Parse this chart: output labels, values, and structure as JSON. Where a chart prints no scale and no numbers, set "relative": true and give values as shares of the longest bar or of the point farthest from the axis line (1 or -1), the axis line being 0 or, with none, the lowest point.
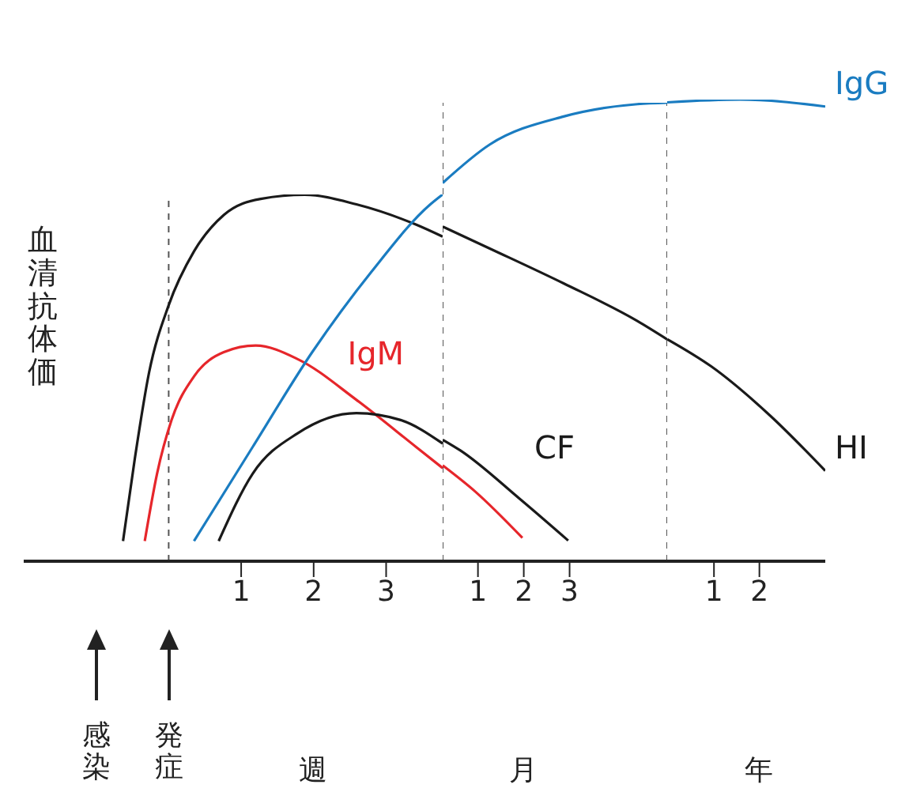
{
  "chart_data": [
    {
      "type": "line",
      "relative": true,
      "ylabel": "血清抗体価",
      "xlim": [
        -2,
        3.78
      ],
      "xticks": [
        1,
        2,
        3
      ],
      "series": [
        {
          "color": "#1a1a1a",
          "x": [
            -0.63,
            -0.47,
            -0.27,
            0,
            0.35,
            0.76,
            1.27,
            1.88,
            2.59,
            3.41,
            3.78
          ],
          "values": [
            0.055,
            0.276,
            0.515,
            0.698,
            0.845,
            0.944,
            0.988,
            0.999,
            0.973,
            0.918,
            0.885
          ]
        },
        {
          "name": "IgM",
          "color": "#e6262b",
          "x": [
            -0.33,
            -0.16,
            0.04,
            0.35,
            0.76,
            1.2,
            1.78,
            2.59,
            3.41,
            3.78
          ],
          "values": [
            0.055,
            0.239,
            0.385,
            0.504,
            0.57,
            0.588,
            0.551,
            0.44,
            0.312,
            0.254
          ]
        },
        {
          "color": "#1a1a1a",
          "x": [
            0.69,
            1.16,
            1.78,
            2.59,
            3.2,
            3.78
          ],
          "values": [
            0.055,
            0.239,
            0.349,
            0.404,
            0.385,
            0.321
          ]
        },
        {
          "color": "#1a7cc1",
          "x": [
            0.35,
            1.16,
            1.98,
            2.8,
            3.61,
            3.78
          ],
          "values": [
            0.055,
            0.312,
            0.57,
            0.79,
            0.973,
            1
          ]
        }
      ],
      "ref_lines": [
        {
          "axis": "x",
          "value": 0,
          "color": "#555555",
          "line_style": "dashed"
        }
      ],
      "annotations": [
        "感染",
        "発症",
        "週"
      ],
      "marker": "none",
      "line_style": "solid"
    },
    {
      "type": "line",
      "relative": true,
      "xlim": [
        0.23,
        5.13
      ],
      "xticks": [
        1,
        2,
        3
      ],
      "series": [
        {
          "color": "#1a1a1a",
          "x": [
            0.23,
            1.26,
            2.87,
            4.48,
            5.13
          ],
          "values": [
            0.73,
            0.682,
            0.606,
            0.524,
            0.484
          ]
        },
        {
          "color": "#e6262b",
          "x": [
            0.23,
            0.94,
            1.97
          ],
          "values": [
            0.209,
            0.152,
            0.051
          ]
        },
        {
          "name": "CF",
          "color": "#1a1a1a",
          "x": [
            0.23,
            0.61,
            1.9,
            2.97
          ],
          "values": [
            0.265,
            0.242,
            0.137,
            0.045
          ]
        },
        {
          "color": "#1a7cc1",
          "x": [
            0.23,
            1.26,
            2.87,
            4.48,
            5.13
          ],
          "values": [
            0.825,
            0.909,
            0.97,
            0.997,
            1
          ]
        }
      ],
      "ref_lines": [
        {
          "axis": "x",
          "value": 0.23,
          "color": "#555555",
          "line_style": "dashed"
        },
        {
          "axis": "x",
          "value": 5.13,
          "color": "#555555",
          "line_style": "dashed"
        }
      ],
      "annotations": [
        "月"
      ],
      "marker": "none",
      "line_style": "solid"
    },
    {
      "type": "line",
      "relative": true,
      "xlim": [
        -0.03,
        3.45
      ],
      "xticks": [
        1,
        2
      ],
      "series": [
        {
          "name": "HI",
          "color": "#1a1a1a",
          "x": [
            -0.03,
            0.94,
            2.23,
            3.45
          ],
          "values": [
            0.481,
            0.422,
            0.316,
            0.196
          ]
        },
        {
          "name": "IgG",
          "color": "#1a7cc1",
          "x": [
            -0.03,
            1.58,
            3.45
          ],
          "values": [
            0.994,
            1.0,
            0.985
          ]
        }
      ],
      "annotations": [
        "年"
      ],
      "marker": "none",
      "line_style": "solid"
    }
  ]
}
